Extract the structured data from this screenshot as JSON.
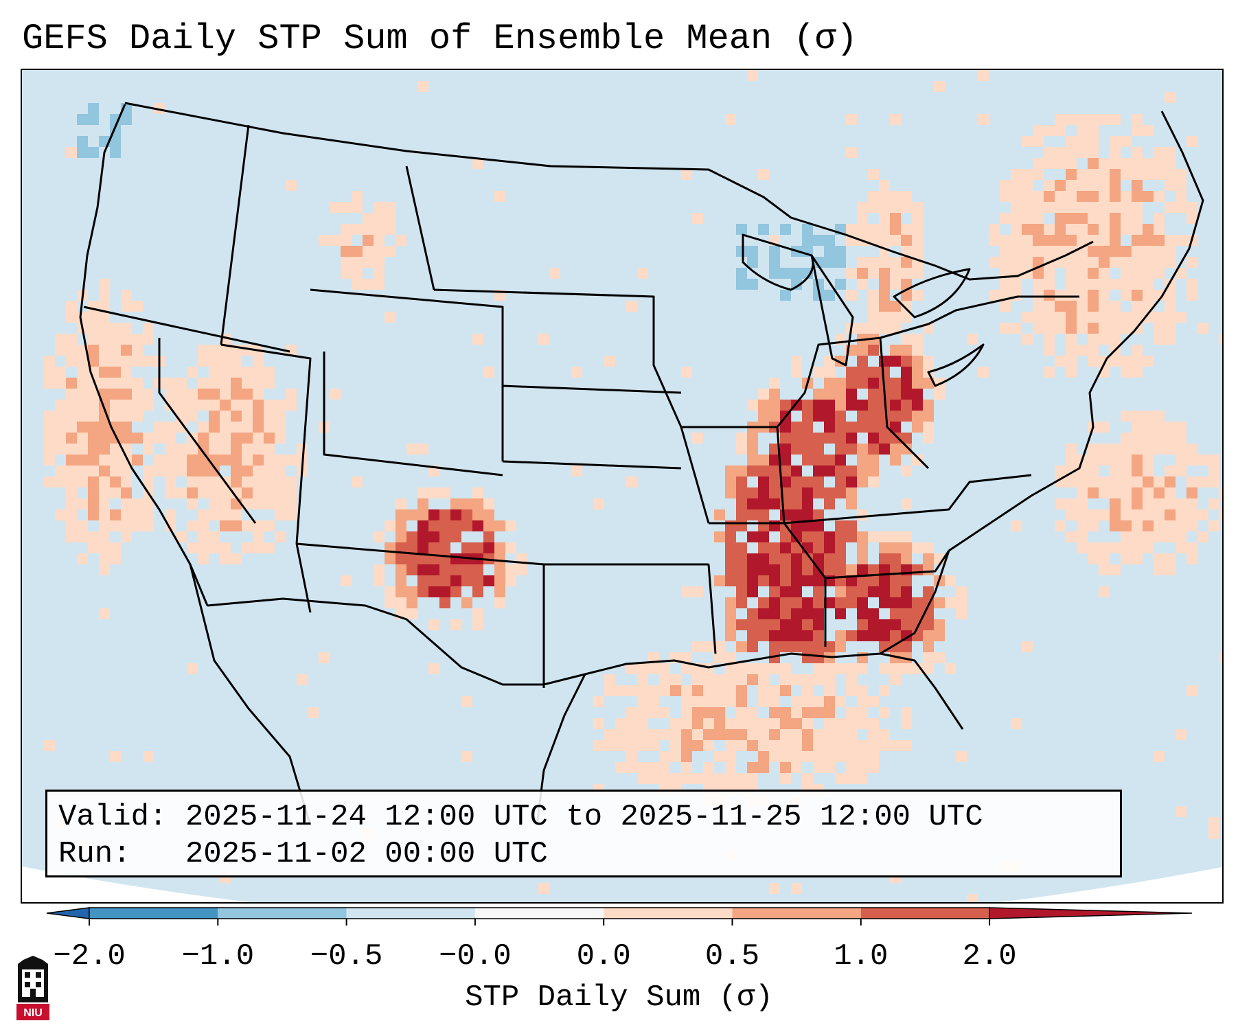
{
  "title": "GEFS Daily STP Sum of Ensemble Mean (σ)",
  "info": {
    "valid_label": "Valid:",
    "valid_value": "2025-11-24 12:00 UTC to 2025-11-25 12:00 UTC",
    "run_label": "Run:",
    "run_value": "2025-11-02 00:00 UTC"
  },
  "colorbar": {
    "label": "STP Daily Sum (σ)",
    "ticks": [
      "−2.0",
      "−1.0",
      "−0.5",
      "−0.0",
      "0.0",
      "0.5",
      "1.0",
      "2.0"
    ],
    "bins": [
      {
        "range": "< -2.0",
        "color": "#2166ac"
      },
      {
        "range": "-2.0 to -1.0",
        "color": "#4393c3"
      },
      {
        "range": "-1.0 to -0.5",
        "color": "#92c5de"
      },
      {
        "range": "-0.5 to -0.0",
        "color": "#d1e5f0"
      },
      {
        "range": "-0.0 to 0.0",
        "color": "#f7f7f7"
      },
      {
        "range": "0.0 to 0.5",
        "color": "#fddbc7"
      },
      {
        "range": "0.5 to 1.0",
        "color": "#f4a582"
      },
      {
        "range": "1.0 to 2.0",
        "color": "#d6604d"
      },
      {
        "range": "> 2.0",
        "color": "#b2182b"
      }
    ]
  },
  "map": {
    "background_color": "#d1e5f0",
    "outline_color": "#000000",
    "regions": [
      "Southeast US / Mississippi Valley",
      "Gulf of Mexico",
      "Ohio Valley",
      "New Mexico",
      "Nevada",
      "California coast",
      "Northeast"
    ]
  },
  "logo": {
    "text": "NIU",
    "color": "#c8102e"
  }
}
